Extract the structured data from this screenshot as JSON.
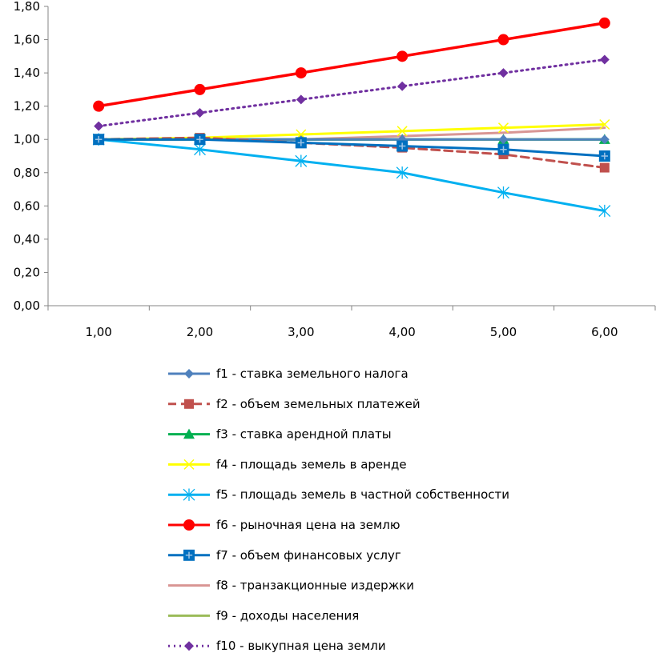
{
  "chart_data": {
    "type": "line",
    "title": "",
    "xlabel": "",
    "ylabel": "",
    "x": [
      1,
      2,
      3,
      4,
      5,
      6
    ],
    "x_tick_labels": [
      "1,00",
      "2,00",
      "3,00",
      "4,00",
      "5,00",
      "6,00"
    ],
    "y_tick_labels": [
      "0,00",
      "0,20",
      "0,40",
      "0,60",
      "0,80",
      "1,00",
      "1,20",
      "1,40",
      "1,60",
      "1,80"
    ],
    "xlim": [
      0.5,
      6.5
    ],
    "ylim": [
      0,
      1.8
    ],
    "grid": false,
    "legend_position": "bottom",
    "series": [
      {
        "name": "f1 - ставка земельного налога",
        "color": "#4F81BD",
        "dash": "solid",
        "marker": "diamond",
        "values": [
          1.0,
          1.0,
          1.0,
          1.0,
          1.0,
          1.0
        ]
      },
      {
        "name": "f2 - объем земельных платежей",
        "color": "#C0504D",
        "dash": "dashed",
        "marker": "square",
        "values": [
          1.0,
          1.01,
          0.98,
          0.95,
          0.91,
          0.83
        ]
      },
      {
        "name": "f3 - ставка арендной платы",
        "color": "#00B050",
        "dash": "solid",
        "marker": "triangle",
        "values": [
          1.0,
          1.0,
          1.0,
          1.0,
          1.0,
          1.0
        ]
      },
      {
        "name": "f4 - площадь земель в аренде",
        "color": "#FFFF00",
        "dash": "solid",
        "marker": "x",
        "values": [
          1.0,
          1.01,
          1.03,
          1.05,
          1.07,
          1.09
        ]
      },
      {
        "name": "f5 - площадь земель в частной собственности",
        "color": "#00B0F0",
        "dash": "solid",
        "marker": "star",
        "values": [
          1.0,
          0.94,
          0.87,
          0.8,
          0.68,
          0.57
        ]
      },
      {
        "name": "f6 - рыночная цена на землю",
        "color": "#FF0000",
        "dash": "solid",
        "marker": "circle",
        "values": [
          1.2,
          1.3,
          1.4,
          1.5,
          1.6,
          1.7
        ]
      },
      {
        "name": "f7 - объем финансовых услуг",
        "color": "#0070C0",
        "dash": "solid",
        "marker": "square-plus",
        "values": [
          1.0,
          1.0,
          0.98,
          0.96,
          0.94,
          0.9
        ]
      },
      {
        "name": "f8 - транзакционные издержки",
        "color": "#D99694",
        "dash": "solid",
        "marker": "none",
        "values": [
          1.0,
          1.0,
          1.0,
          1.02,
          1.04,
          1.07
        ]
      },
      {
        "name": "f9 - доходы населения",
        "color": "#9BBB59",
        "dash": "solid",
        "marker": "none",
        "values": [
          1.0,
          1.0,
          1.0,
          1.0,
          1.0,
          1.0
        ]
      },
      {
        "name": "f10 - выкупная цена земли",
        "color": "#7030A0",
        "dash": "dotted",
        "marker": "diamond",
        "values": [
          1.08,
          1.16,
          1.24,
          1.32,
          1.4,
          1.48
        ]
      }
    ]
  }
}
